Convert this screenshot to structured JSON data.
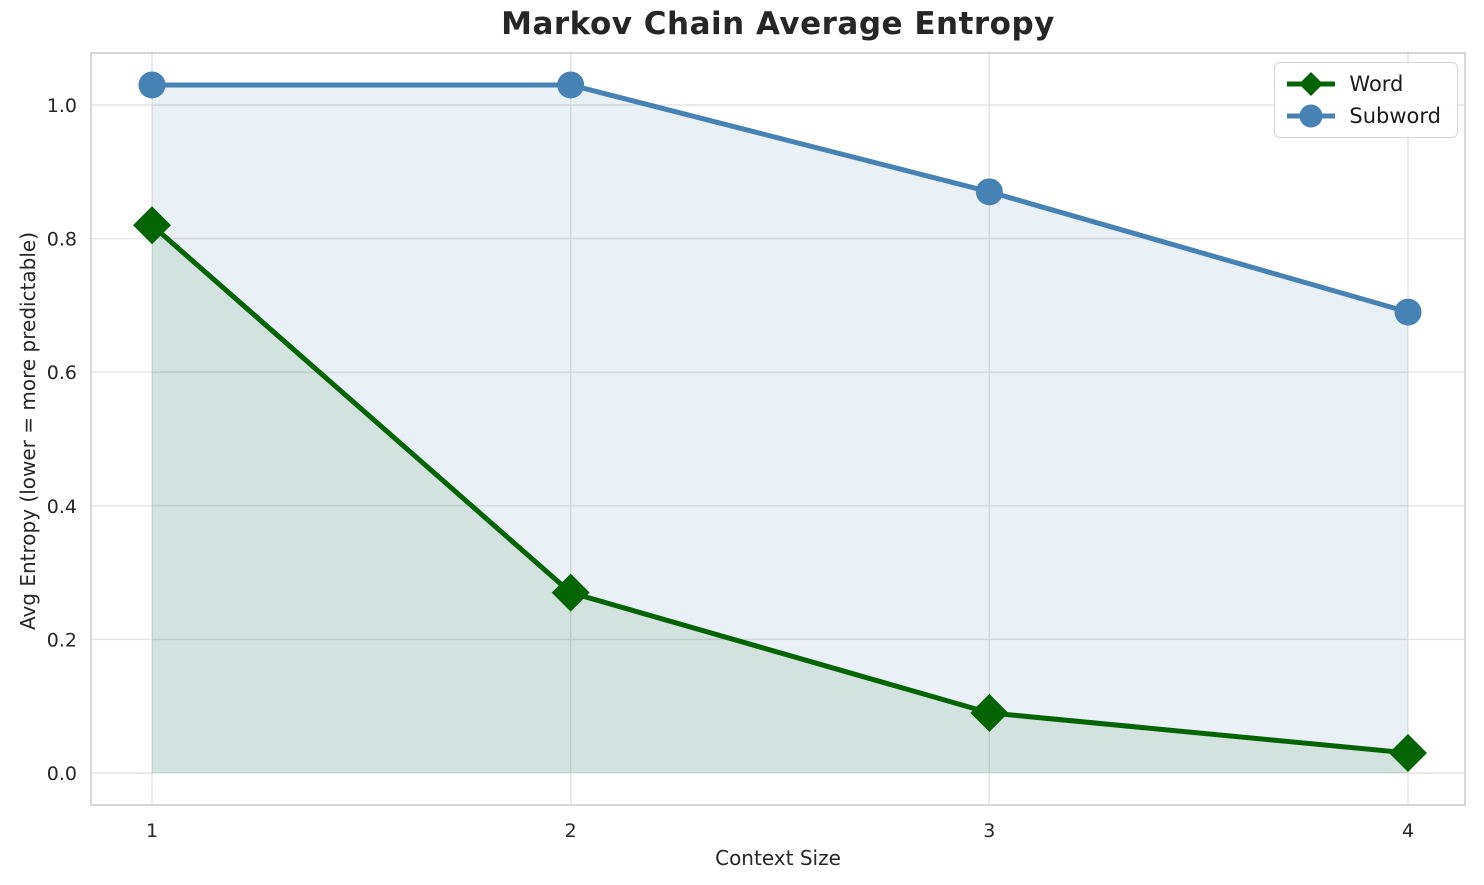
{
  "chart_data": {
    "type": "line",
    "title": "Markov Chain Average Entropy",
    "xlabel": "Context Size",
    "ylabel": "Avg Entropy (lower = more predictable)",
    "x": [
      1,
      2,
      3,
      4
    ],
    "xtick_labels": [
      "1",
      "2",
      "3",
      "4"
    ],
    "ytick_labels": [
      "0.0",
      "0.2",
      "0.4",
      "0.6",
      "0.8",
      "1.0"
    ],
    "ylim": [
      -0.05,
      1.08
    ],
    "grid": true,
    "legend_position": "upper right",
    "series": [
      {
        "name": "Word",
        "marker": "diamond",
        "color": "#046404",
        "fill_color": "rgba(0,100,0,0.10)",
        "values": [
          0.82,
          0.27,
          0.09,
          0.03
        ]
      },
      {
        "name": "Subword",
        "marker": "circle",
        "color": "#4682b4",
        "fill_color": "rgba(70,130,180,0.12)",
        "values": [
          1.03,
          1.03,
          0.87,
          0.69
        ]
      }
    ],
    "colors": {
      "grid": "#e4e4e4",
      "spine": "#cfcfcf",
      "text": "#262626"
    }
  }
}
